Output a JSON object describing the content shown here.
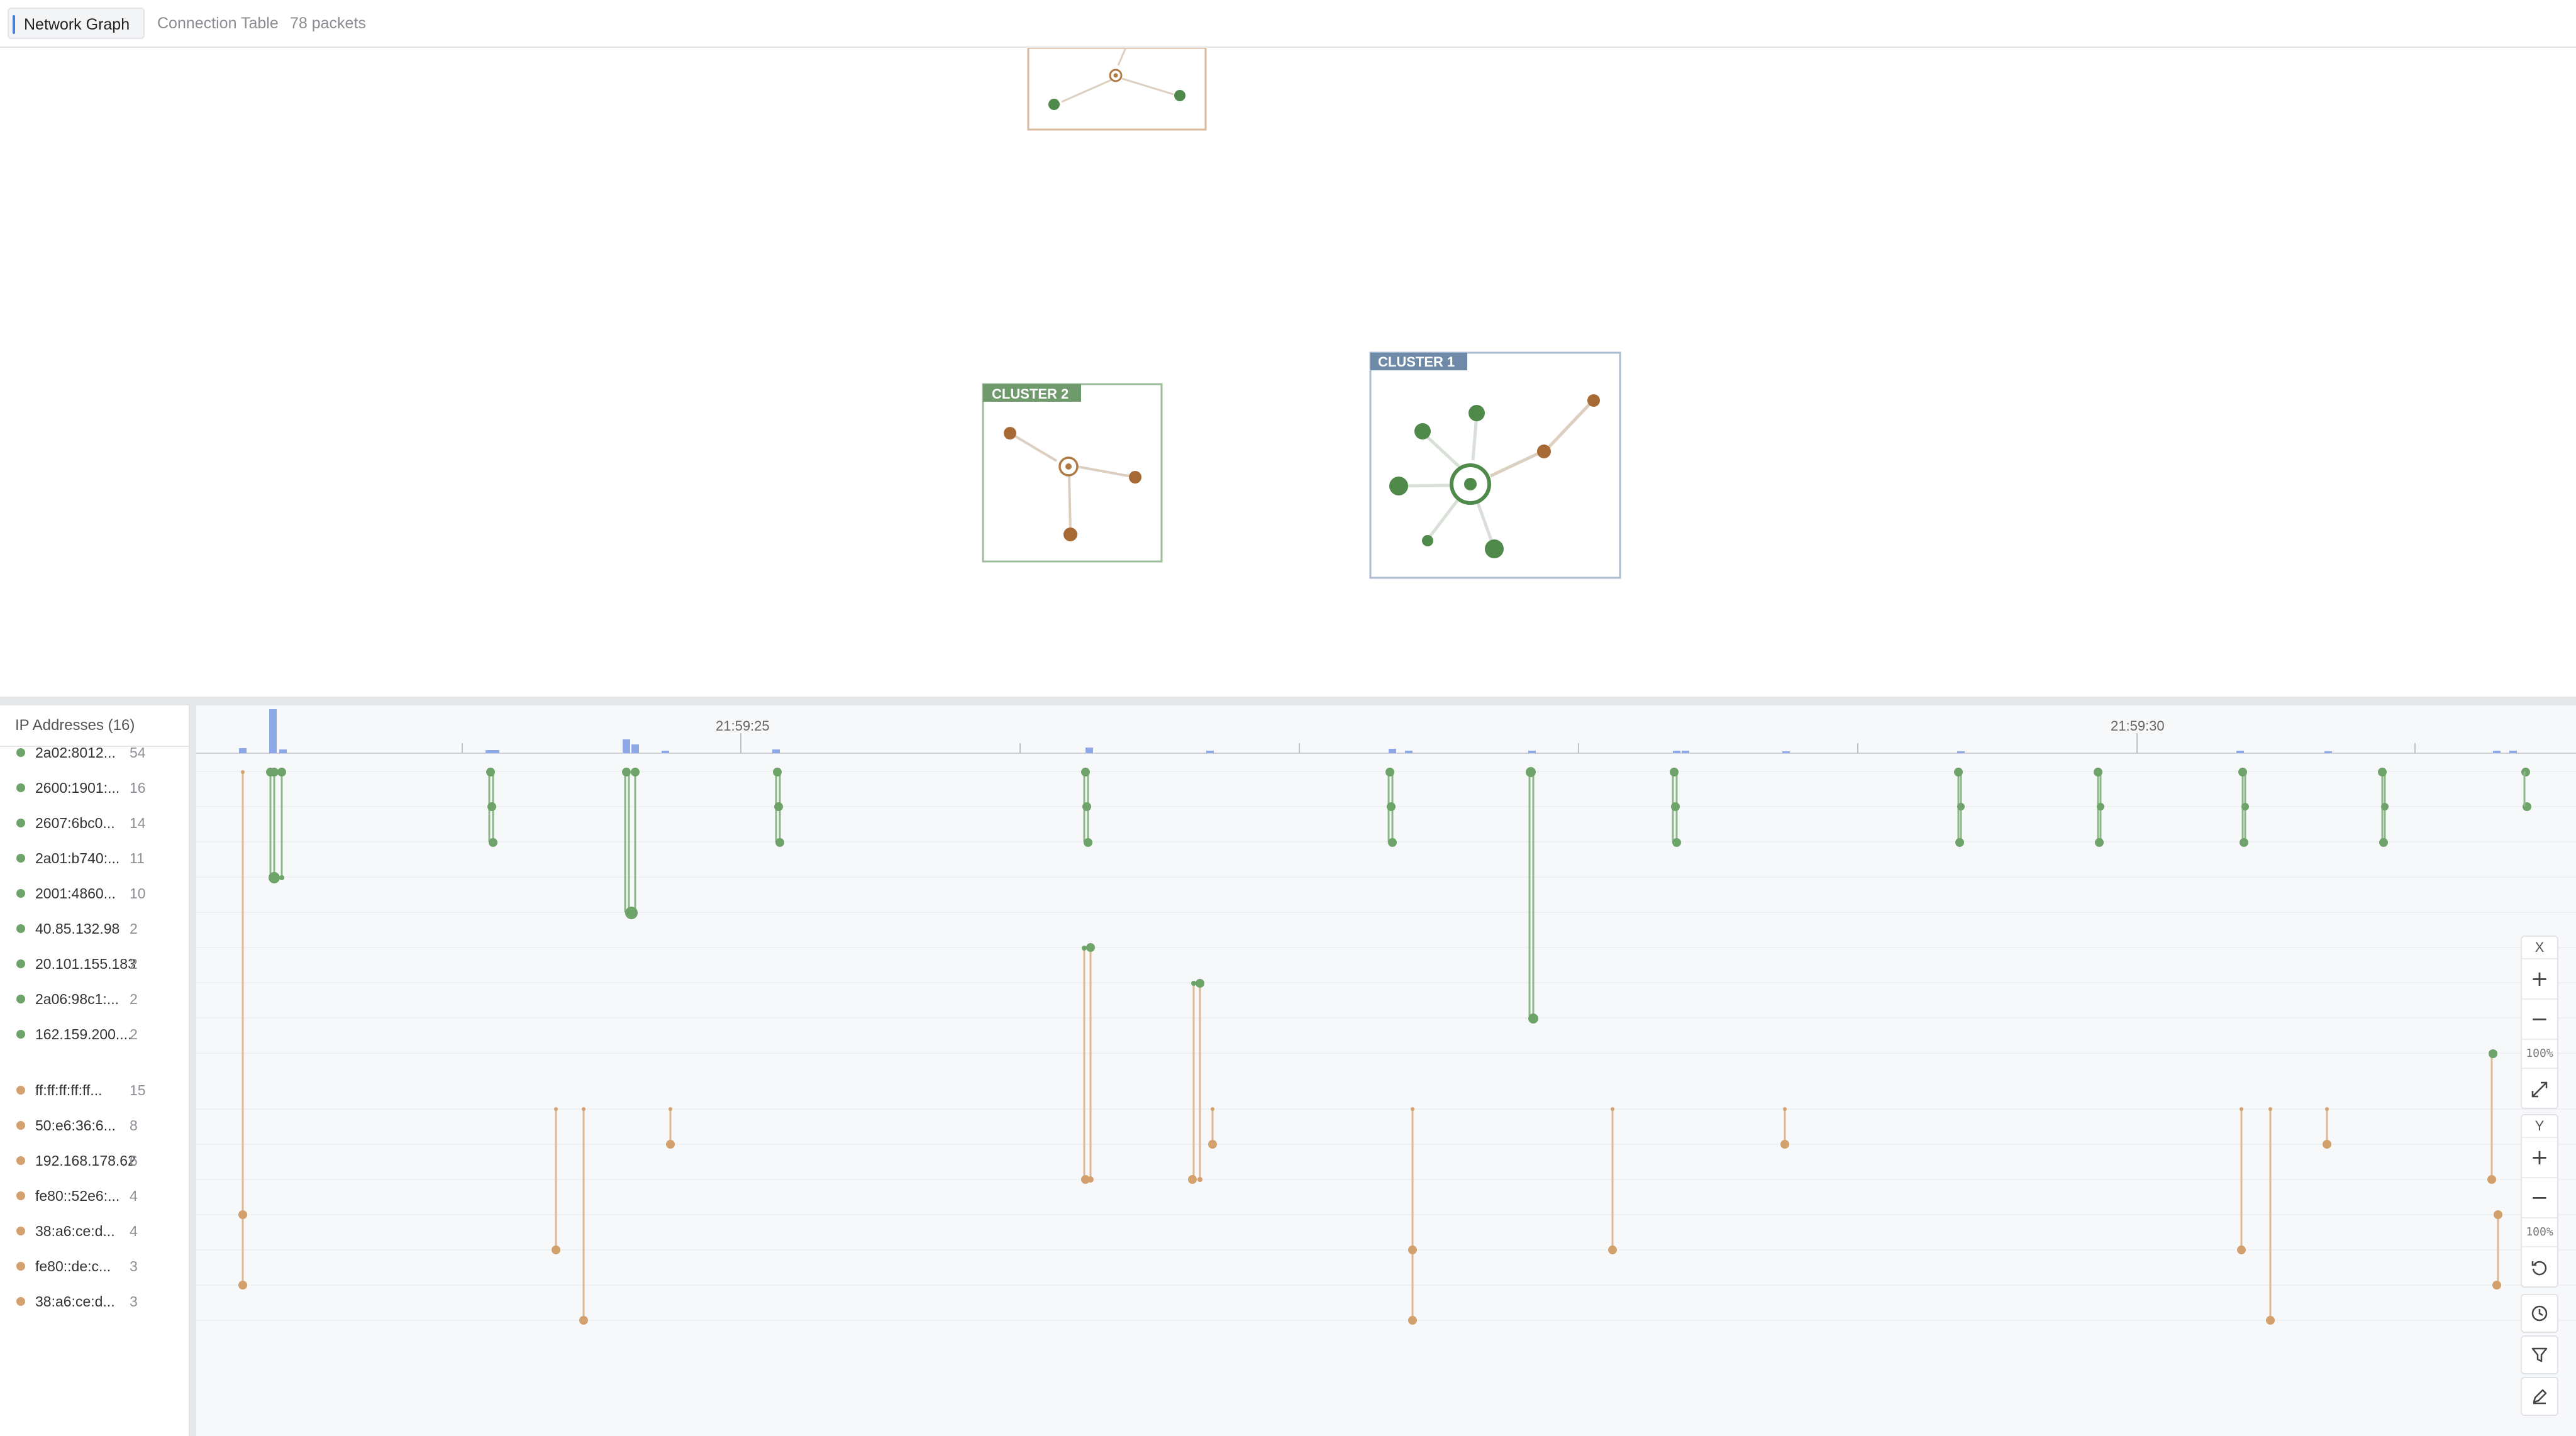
{
  "tabs": [
    {
      "label": "Network Graph",
      "active": true
    },
    {
      "label": "Connection Table",
      "active": false
    }
  ],
  "packet_count": "78 packets",
  "clusters": [
    {
      "label": "CLUSTER 2",
      "color": "#6f9a6c"
    },
    {
      "label": "CLUSTER 1",
      "color": "#6f8aa8"
    }
  ],
  "ip_panel": {
    "header": "IP Addresses (16)",
    "ips": [
      {
        "name": "2a02:8012...",
        "count": "54",
        "kind": "green"
      },
      {
        "name": "2600:1901:...",
        "count": "16",
        "kind": "green"
      },
      {
        "name": "2607:6bc0...",
        "count": "14",
        "kind": "green"
      },
      {
        "name": "2a01:b740:...",
        "count": "11",
        "kind": "green"
      },
      {
        "name": "2001:4860...",
        "count": "10",
        "kind": "green"
      },
      {
        "name": "40.85.132.98",
        "count": "2",
        "kind": "green"
      },
      {
        "name": "20.101.155.183",
        "count": "2",
        "kind": "green"
      },
      {
        "name": "2a06:98c1:...",
        "count": "2",
        "kind": "green"
      },
      {
        "name": "162.159.200....",
        "count": "2",
        "kind": "green"
      },
      {
        "name": "ff:ff:ff:ff:ff...",
        "count": "15",
        "kind": "orange"
      },
      {
        "name": "50:e6:36:6...",
        "count": "8",
        "kind": "orange"
      },
      {
        "name": "192.168.178.62",
        "count": "6",
        "kind": "orange"
      },
      {
        "name": "fe80::52e6:...",
        "count": "4",
        "kind": "orange"
      },
      {
        "name": "38:a6:ce:d...",
        "count": "4",
        "kind": "orange"
      },
      {
        "name": "fe80::de:c...",
        "count": "3",
        "kind": "orange"
      },
      {
        "name": "38:a6:ce:d...",
        "count": "3",
        "kind": "orange"
      }
    ]
  },
  "timeline": {
    "tick_labels": [
      "21:59:25",
      "21:59:30"
    ]
  },
  "controls": {
    "x_label": "X",
    "y_label": "Y",
    "zoom_in": "+",
    "zoom_out": "−",
    "x_zoom": "100%",
    "y_zoom": "100%",
    "icons": [
      "fit-icon",
      "reset-icon",
      "clock-icon",
      "filter-icon",
      "pen-icon"
    ]
  },
  "colors": {
    "green": "#6ea36a",
    "orange": "#d4a06d",
    "dark_green": "#4f8a4b",
    "dark_orange": "#a86a35",
    "histogram": "#8fa9e8"
  }
}
